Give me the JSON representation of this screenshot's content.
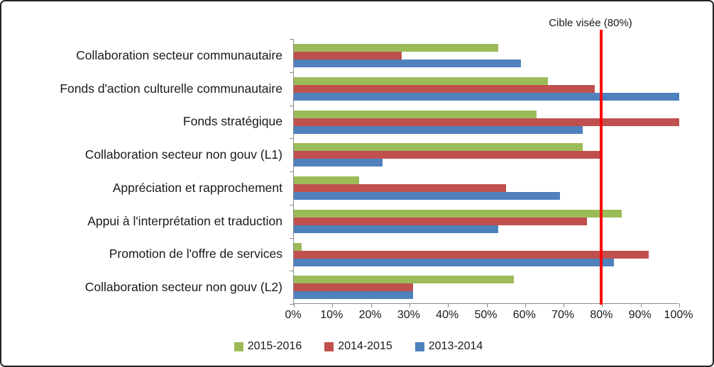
{
  "chart_data": {
    "type": "bar",
    "orientation": "horizontal",
    "title": "",
    "categories": [
      "Collaboration secteur communautaire",
      "Fonds d'action culturelle communautaire",
      "Fonds stratégique",
      "Collaboration secteur non gouv (L1)",
      "Appréciation et rapprochement",
      "Appui à l'interprétation et traduction",
      "Promotion de l'offre de services",
      "Collaboration secteur non gouv (L2)"
    ],
    "series": [
      {
        "name": "2015-2016",
        "color": "#9BBB59",
        "values": [
          53,
          66,
          63,
          75,
          17,
          85,
          2,
          57
        ]
      },
      {
        "name": "2014-2015",
        "color": "#C0504D",
        "values": [
          28,
          78,
          100,
          80,
          55,
          76,
          92,
          31
        ]
      },
      {
        "name": "2013-2014",
        "color": "#4F81BD",
        "values": [
          59,
          100,
          75,
          23,
          69,
          53,
          83,
          31
        ]
      }
    ],
    "x_axis": {
      "ticks": [
        "0%",
        "10%",
        "20%",
        "30%",
        "40%",
        "50%",
        "60%",
        "70%",
        "80%",
        "90%",
        "100%"
      ],
      "min": 0,
      "max": 100
    },
    "target_line": {
      "value": 80,
      "label": "Cible visée (80%)",
      "color": "#FF0000"
    },
    "legend_position": "bottom",
    "grid": false
  }
}
